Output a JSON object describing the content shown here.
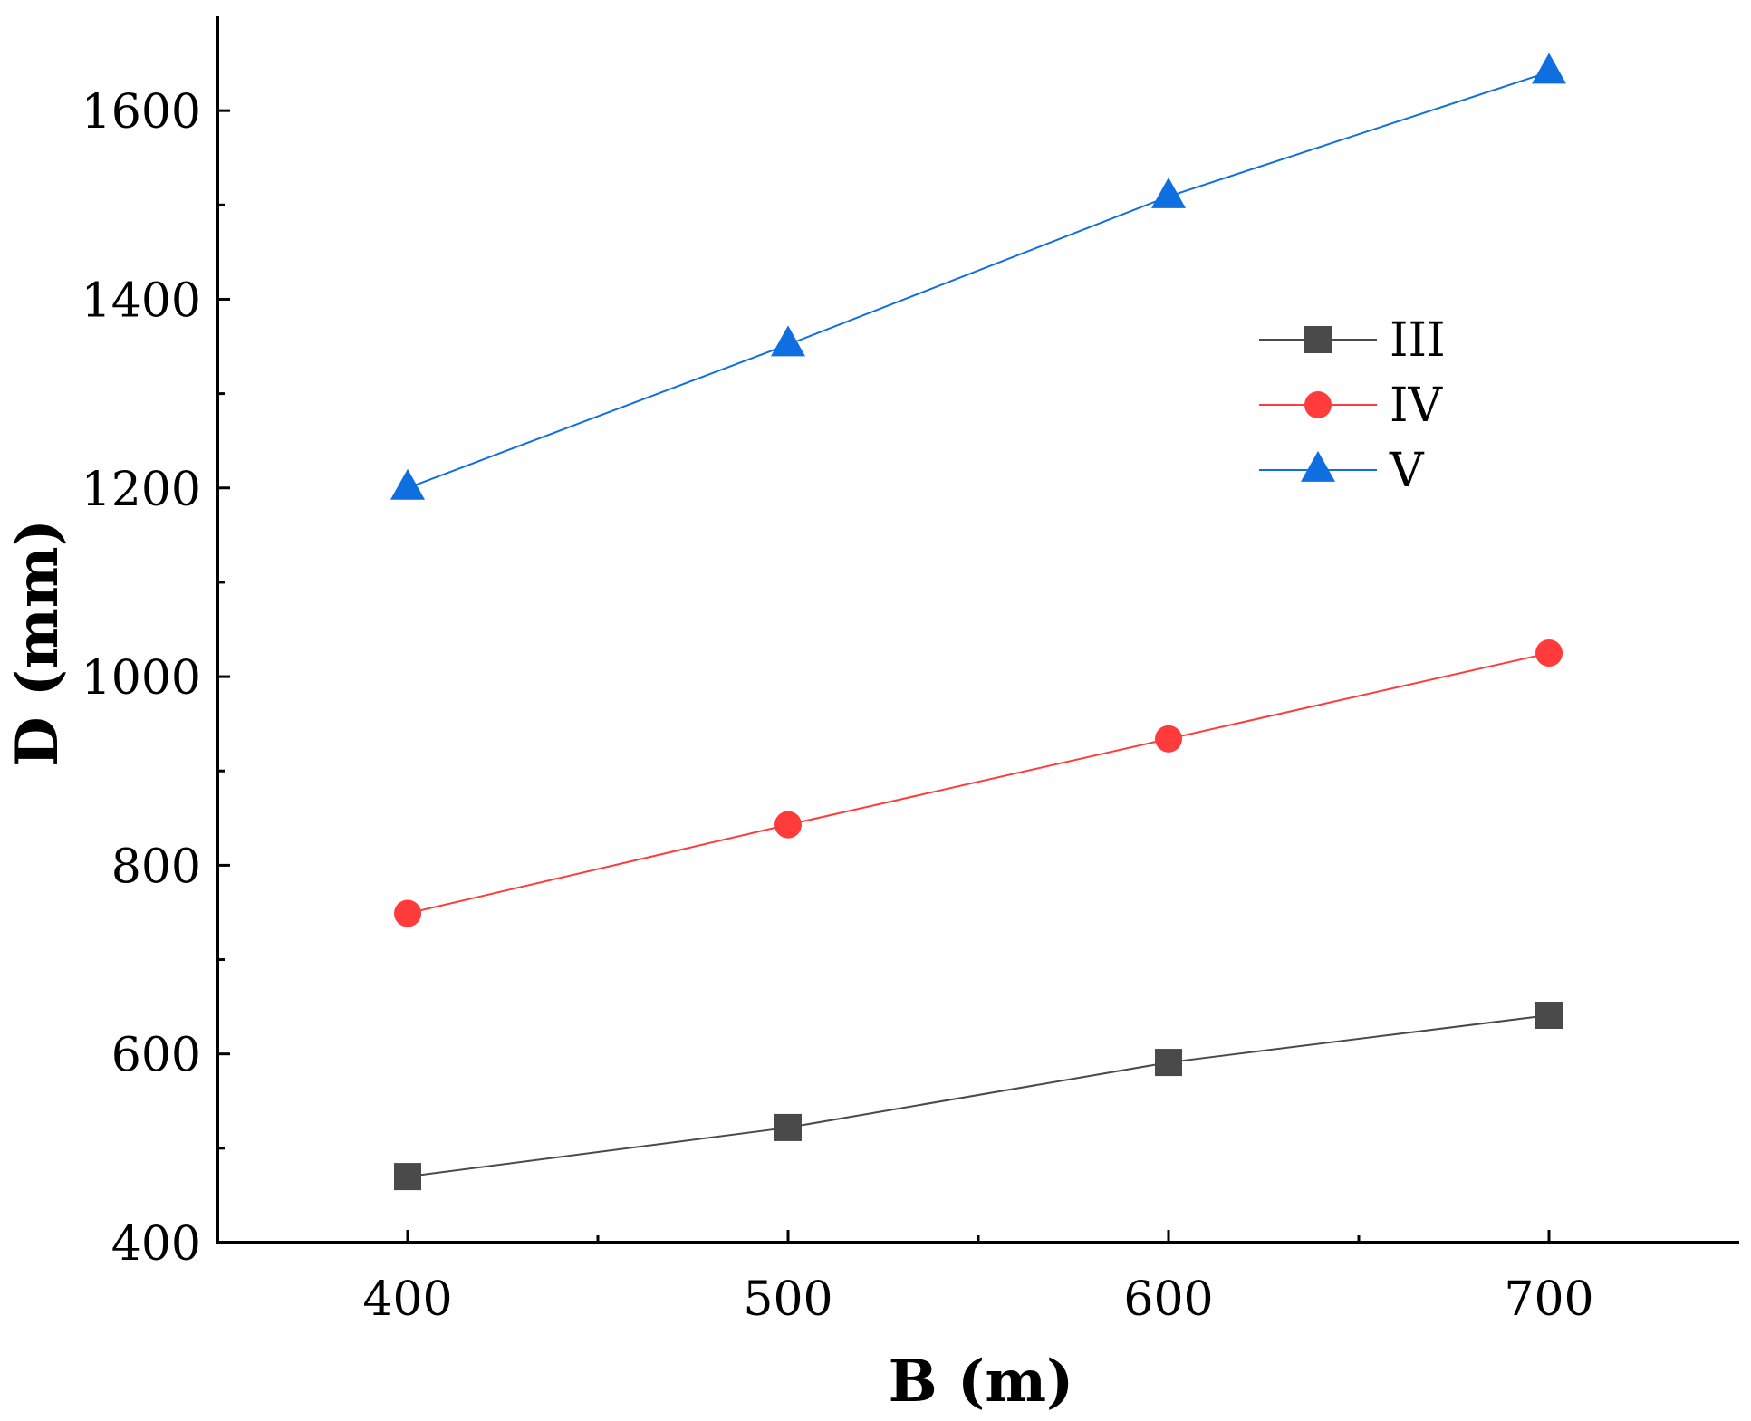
{
  "chart_data": {
    "type": "line",
    "title": "",
    "xlabel": "B (m)",
    "ylabel": "D (mm)",
    "x": [
      400,
      500,
      600,
      700
    ],
    "xlim": [
      350,
      750
    ],
    "ylim": [
      400,
      1700
    ],
    "xticks": [
      400,
      500,
      600,
      700
    ],
    "yticks": [
      400,
      600,
      800,
      1000,
      1200,
      1400,
      1600
    ],
    "x_tick_labels": [
      "400",
      "500",
      "600",
      "700"
    ],
    "y_tick_labels": [
      "400",
      "600",
      "800",
      "1000",
      "1200",
      "1400",
      "1600"
    ],
    "grid": false,
    "legend_position": "upper-right",
    "series": [
      {
        "name": "III",
        "marker": "square",
        "color": "#4a4a4a",
        "values": [
          470,
          522,
          591,
          641
        ]
      },
      {
        "name": "IV",
        "marker": "circle",
        "color": "#ff3b3b",
        "values": [
          749,
          843,
          934,
          1025
        ]
      },
      {
        "name": "V",
        "marker": "triangle",
        "color": "#0f6fe0",
        "values": [
          1200,
          1352,
          1509,
          1641
        ]
      }
    ]
  }
}
